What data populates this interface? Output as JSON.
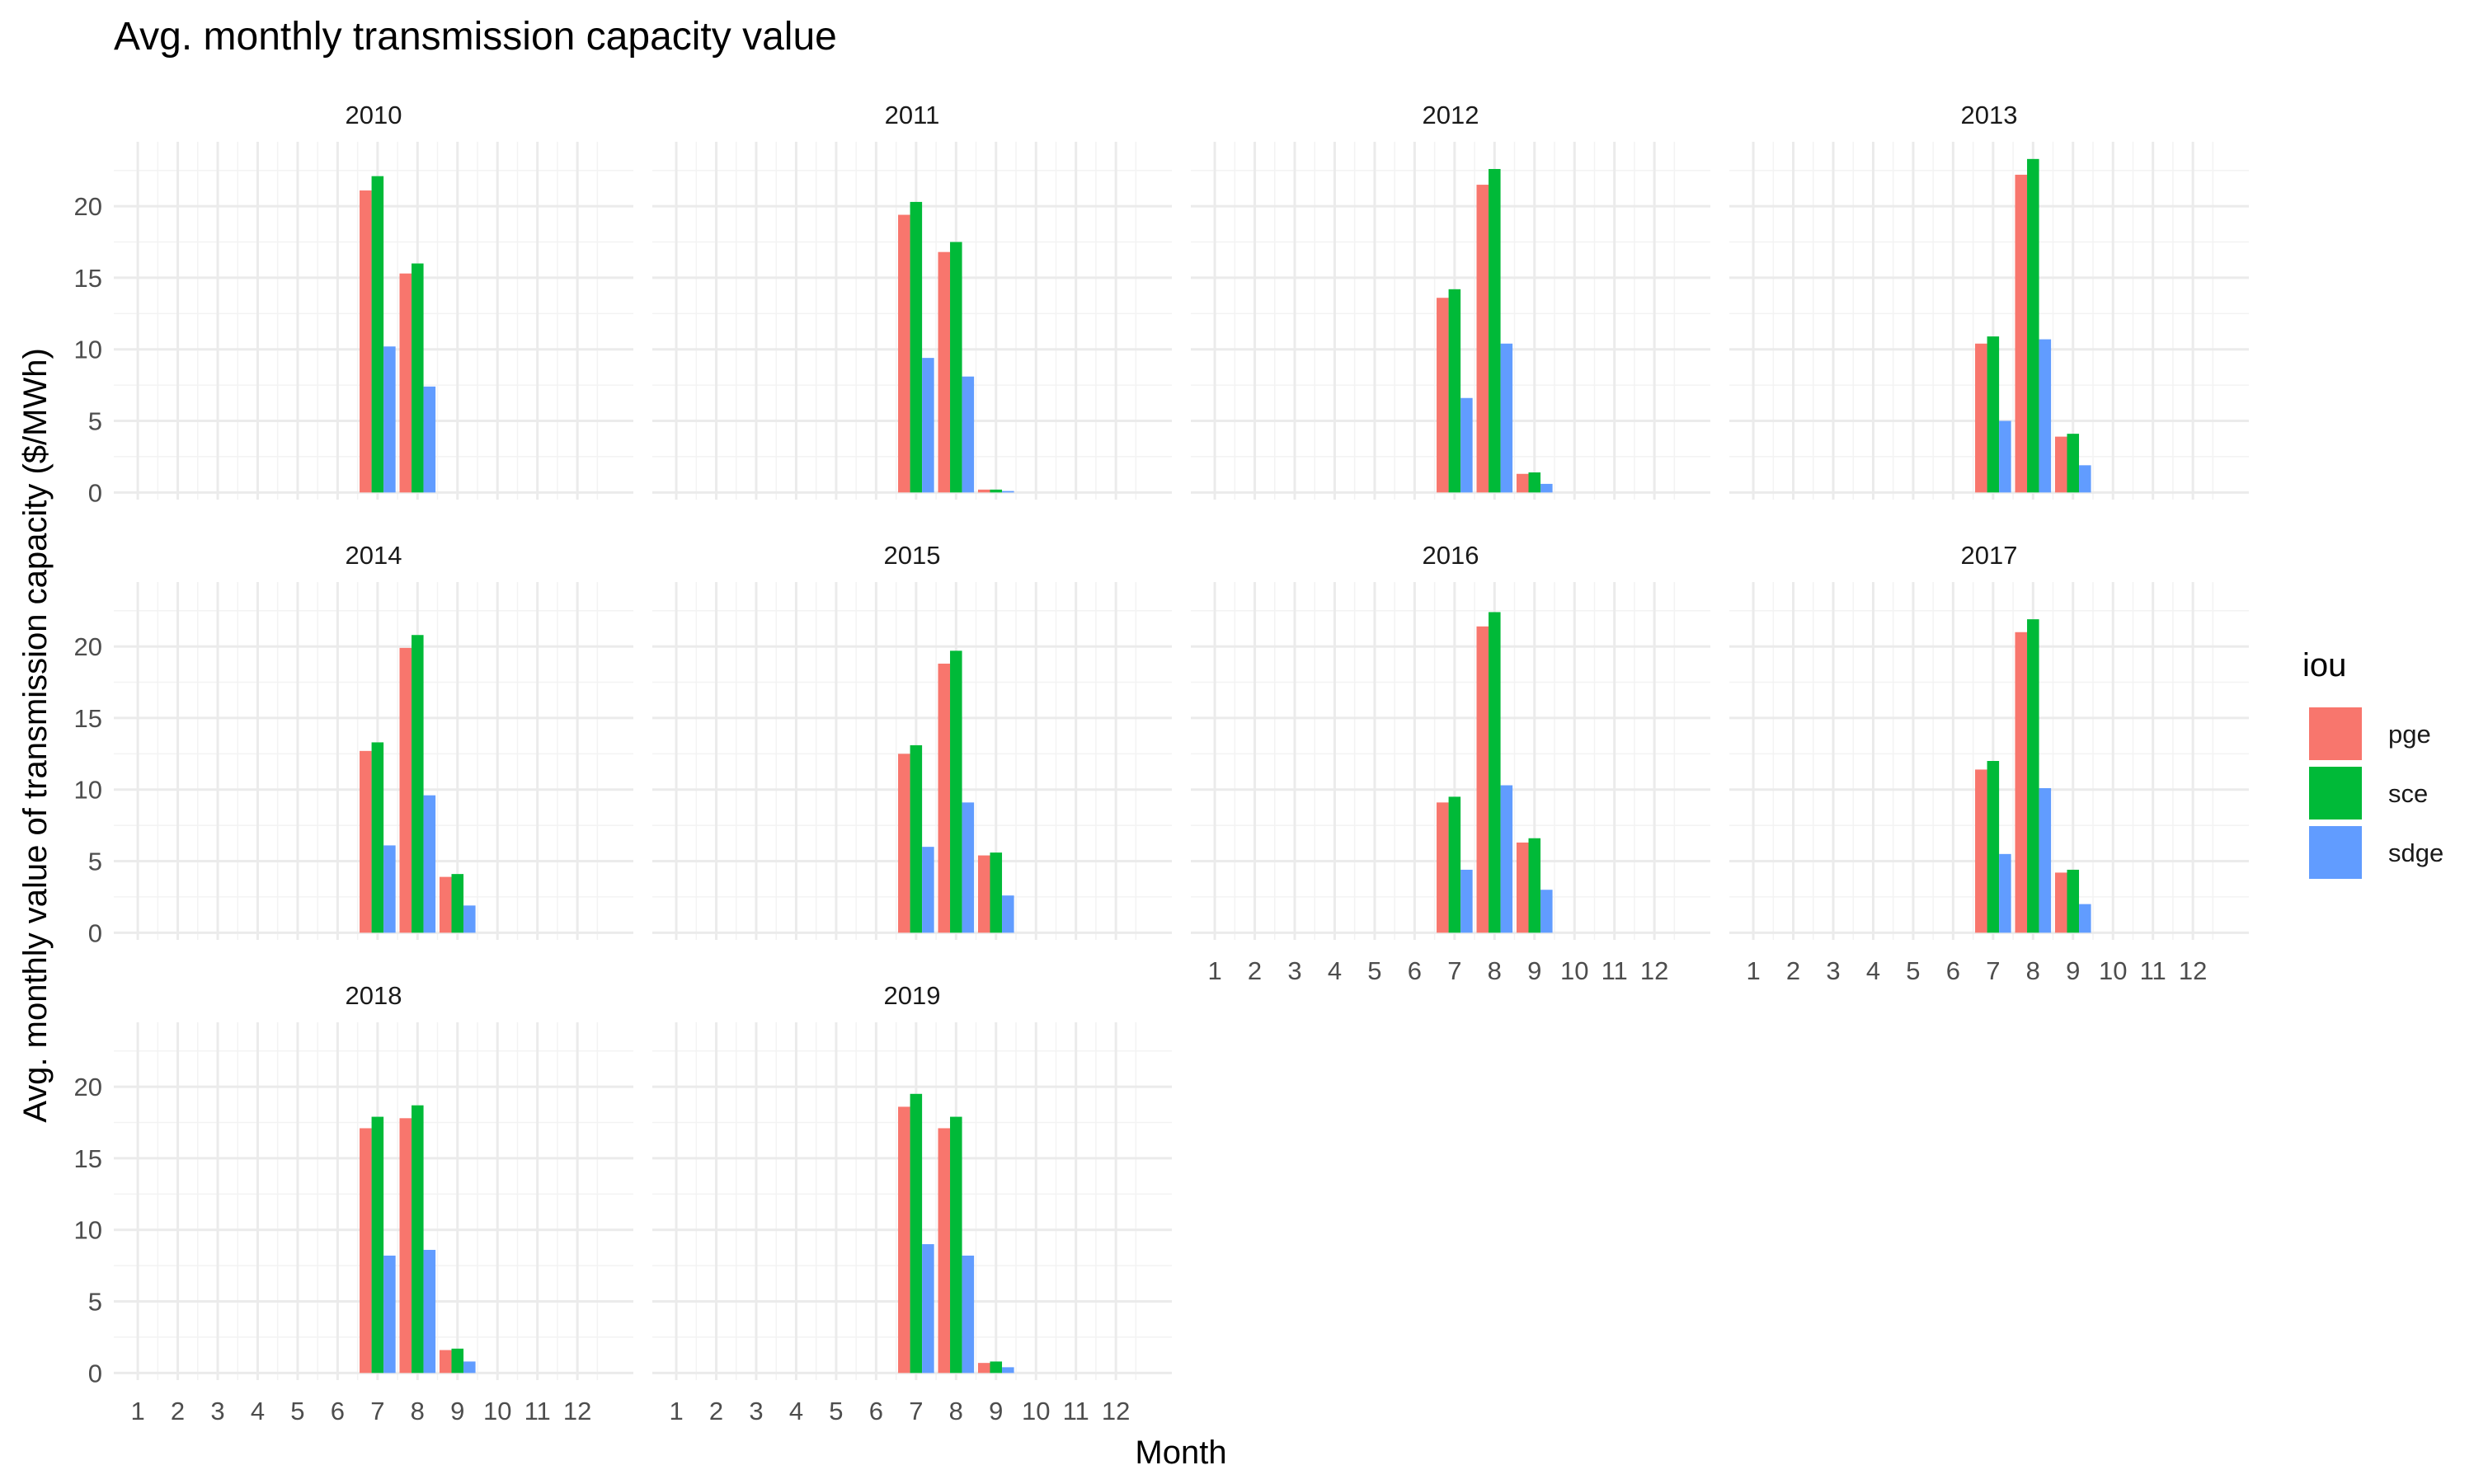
{
  "chart_data": {
    "type": "bar",
    "title": "Avg. monthly transmission capacity value",
    "xlabel": "Month",
    "ylabel": "Avg. monthly value of transmission capacity ($/MWh)",
    "x_ticks": [
      "1",
      "2",
      "3",
      "4",
      "5",
      "6",
      "7",
      "8",
      "9",
      "10",
      "11",
      "12"
    ],
    "y_ticks": [
      0,
      5,
      10,
      15,
      20
    ],
    "ylim": [
      -0.5,
      24.5
    ],
    "xlim": [
      0.4,
      13.4
    ],
    "grid": true,
    "legend": {
      "title": "iou",
      "position": "right"
    },
    "series": [
      {
        "name": "pge",
        "color": "#F8766D"
      },
      {
        "name": "sce",
        "color": "#00BA38"
      },
      {
        "name": "sdge",
        "color": "#619CFF"
      }
    ],
    "panels": [
      {
        "label": "2010",
        "months": [
          7,
          8,
          9
        ],
        "values": {
          "pge": [
            21.1,
            15.3,
            0
          ],
          "sce": [
            22.1,
            16.0,
            0
          ],
          "sdge": [
            10.2,
            7.4,
            0
          ]
        }
      },
      {
        "label": "2011",
        "months": [
          7,
          8,
          9
        ],
        "values": {
          "pge": [
            19.4,
            16.8,
            0.2
          ],
          "sce": [
            20.3,
            17.5,
            0.2
          ],
          "sdge": [
            9.4,
            8.1,
            0.1
          ]
        }
      },
      {
        "label": "2012",
        "months": [
          7,
          8,
          9
        ],
        "values": {
          "pge": [
            13.6,
            21.5,
            1.3
          ],
          "sce": [
            14.2,
            22.6,
            1.4
          ],
          "sdge": [
            6.6,
            10.4,
            0.6
          ]
        }
      },
      {
        "label": "2013",
        "months": [
          7,
          8,
          9
        ],
        "values": {
          "pge": [
            10.4,
            22.2,
            3.9
          ],
          "sce": [
            10.9,
            23.3,
            4.1
          ],
          "sdge": [
            5.0,
            10.7,
            1.9
          ]
        }
      },
      {
        "label": "2014",
        "months": [
          7,
          8,
          9
        ],
        "values": {
          "pge": [
            12.7,
            19.9,
            3.9
          ],
          "sce": [
            13.3,
            20.8,
            4.1
          ],
          "sdge": [
            6.1,
            9.6,
            1.9
          ]
        }
      },
      {
        "label": "2015",
        "months": [
          7,
          8,
          9
        ],
        "values": {
          "pge": [
            12.5,
            18.8,
            5.4
          ],
          "sce": [
            13.1,
            19.7,
            5.6
          ],
          "sdge": [
            6.0,
            9.1,
            2.6
          ]
        }
      },
      {
        "label": "2016",
        "months": [
          7,
          8,
          9
        ],
        "values": {
          "pge": [
            9.1,
            21.4,
            6.3
          ],
          "sce": [
            9.5,
            22.4,
            6.6
          ],
          "sdge": [
            4.4,
            10.3,
            3.0
          ]
        }
      },
      {
        "label": "2017",
        "months": [
          7,
          8,
          9
        ],
        "values": {
          "pge": [
            11.4,
            21.0,
            4.2
          ],
          "sce": [
            12.0,
            21.9,
            4.4
          ],
          "sdge": [
            5.5,
            10.1,
            2.0
          ]
        }
      },
      {
        "label": "2018",
        "months": [
          7,
          8,
          9
        ],
        "values": {
          "pge": [
            17.1,
            17.8,
            1.6
          ],
          "sce": [
            17.9,
            18.7,
            1.7
          ],
          "sdge": [
            8.2,
            8.6,
            0.8
          ]
        }
      },
      {
        "label": "2019",
        "months": [
          7,
          8,
          9
        ],
        "values": {
          "pge": [
            18.6,
            17.1,
            0.7
          ],
          "sce": [
            19.5,
            17.9,
            0.8
          ],
          "sdge": [
            9.0,
            8.2,
            0.4
          ]
        }
      }
    ]
  }
}
